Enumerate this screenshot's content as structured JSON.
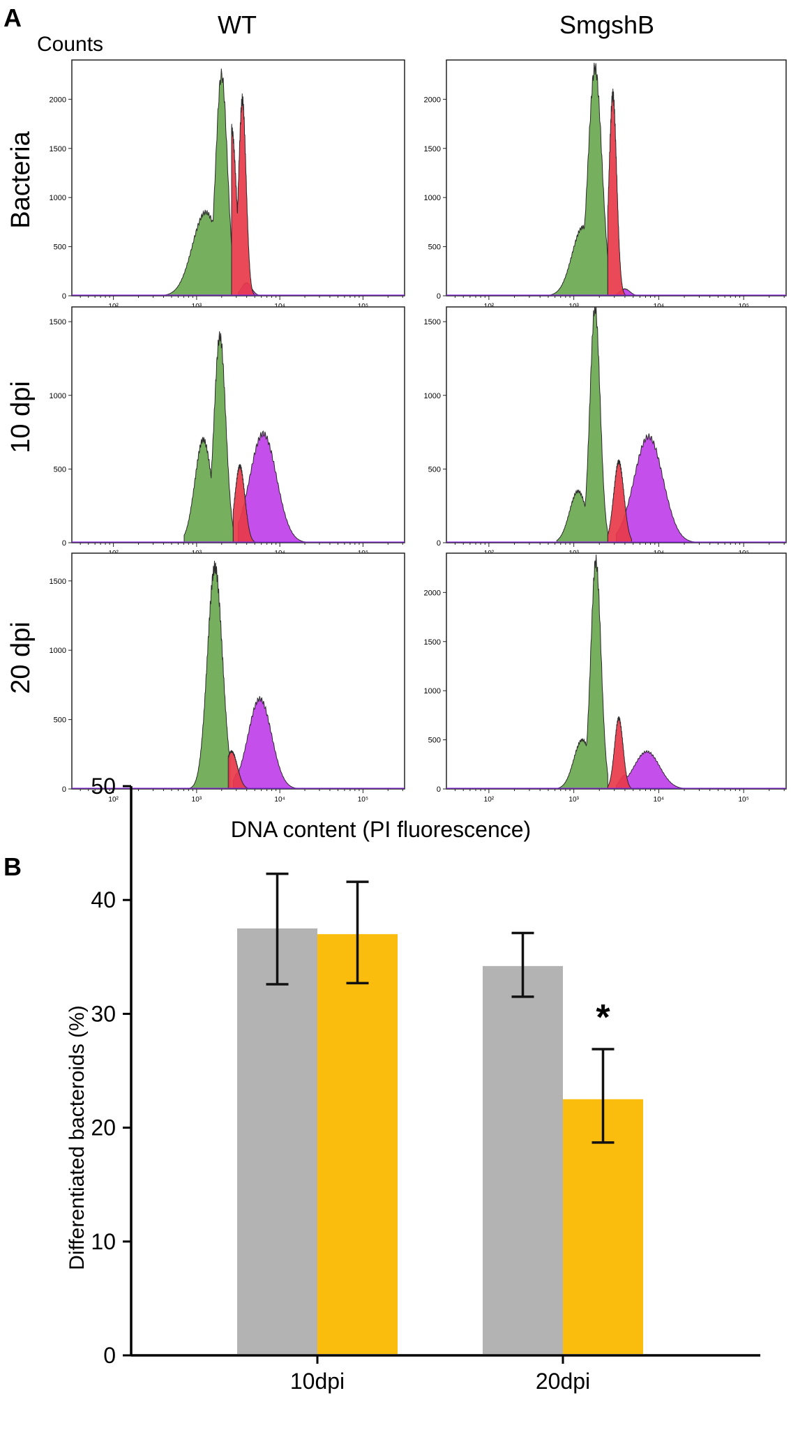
{
  "panel_a": {
    "label": "A",
    "y_axis_label": "Counts",
    "x_axis_label": "DNA content (PI fluorescence)",
    "column_labels": [
      "WT",
      "SmgshB"
    ],
    "row_labels": [
      "Bacteria",
      "10 dpi",
      "20 dpi"
    ],
    "x_ticks": [
      "10²",
      "10³",
      "10⁴",
      "10⁵"
    ],
    "colors": {
      "green": "#6aa84f",
      "red": "#e8394a",
      "magenta": "#c040e8",
      "outline": "#2a2a2a"
    }
  },
  "panel_b": {
    "label": "B"
  },
  "chart_data": [
    {
      "type": "area",
      "title": "Bacteria – WT",
      "xlabel": "DNA content (PI fluorescence)",
      "ylabel": "Counts",
      "x_scale": "log10",
      "xlim_log10": [
        1.5,
        5.5
      ],
      "ylim": [
        0,
        2400
      ],
      "yticks": [
        0,
        500,
        1000,
        1500,
        2000
      ],
      "series": [
        {
          "name": "green",
          "color": "#6aa84f",
          "peaks": [
            [
              3.11,
              850,
              0.16
            ],
            [
              3.3,
              2250,
              0.07
            ]
          ],
          "range": [
            2.6,
            3.42
          ]
        },
        {
          "name": "red",
          "color": "#e8394a",
          "peaks": [
            [
              3.42,
              1700,
              0.06
            ],
            [
              3.55,
              2000,
              0.045
            ]
          ],
          "range": [
            3.42,
            3.72
          ]
        },
        {
          "name": "magenta",
          "color": "#c040e8",
          "peaks": [
            [
              3.6,
              130,
              0.06
            ]
          ],
          "range": [
            3.5,
            4.0
          ]
        }
      ]
    },
    {
      "type": "area",
      "title": "Bacteria – SmgshB",
      "xlabel": "DNA content (PI fluorescence)",
      "ylabel": "Counts",
      "x_scale": "log10",
      "xlim_log10": [
        1.5,
        5.5
      ],
      "ylim": [
        0,
        2400
      ],
      "yticks": [
        0,
        500,
        1000,
        1500,
        2000
      ],
      "series": [
        {
          "name": "green",
          "color": "#6aa84f",
          "peaks": [
            [
              3.11,
              700,
              0.13
            ],
            [
              3.25,
              2320,
              0.08
            ]
          ],
          "range": [
            2.7,
            3.4
          ]
        },
        {
          "name": "red",
          "color": "#e8394a",
          "peaks": [
            [
              3.46,
              2050,
              0.045
            ]
          ],
          "range": [
            3.4,
            3.65
          ]
        },
        {
          "name": "magenta",
          "color": "#c040e8",
          "peaks": [
            [
              3.6,
              70,
              0.06
            ]
          ],
          "range": [
            3.5,
            3.9
          ]
        }
      ]
    },
    {
      "type": "area",
      "title": "10 dpi – WT",
      "xlabel": "DNA content (PI fluorescence)",
      "ylabel": "Counts",
      "x_scale": "log10",
      "xlim_log10": [
        1.5,
        5.5
      ],
      "ylim": [
        0,
        1600
      ],
      "yticks": [
        0,
        500,
        1000,
        1500
      ],
      "series": [
        {
          "name": "green",
          "color": "#6aa84f",
          "peaks": [
            [
              3.08,
              700,
              0.1
            ],
            [
              3.28,
              1400,
              0.07
            ]
          ],
          "range": [
            2.85,
            3.44
          ]
        },
        {
          "name": "red",
          "color": "#e8394a",
          "peaks": [
            [
              3.52,
              520,
              0.06
            ]
          ],
          "range": [
            3.44,
            3.7
          ]
        },
        {
          "name": "magenta",
          "color": "#c040e8",
          "peaks": [
            [
              3.58,
              200,
              0.06
            ],
            [
              3.8,
              740,
              0.16
            ]
          ],
          "range": [
            3.5,
            4.5
          ]
        }
      ]
    },
    {
      "type": "area",
      "title": "10 dpi – SmgshB",
      "xlabel": "DNA content (PI fluorescence)",
      "ylabel": "Counts",
      "x_scale": "log10",
      "xlim_log10": [
        1.5,
        5.5
      ],
      "ylim": [
        0,
        1600
      ],
      "yticks": [
        0,
        500,
        1000,
        1500
      ],
      "series": [
        {
          "name": "green",
          "color": "#6aa84f",
          "peaks": [
            [
              3.05,
              350,
              0.1
            ],
            [
              3.25,
              1600,
              0.06
            ]
          ],
          "range": [
            2.8,
            3.4
          ]
        },
        {
          "name": "red",
          "color": "#e8394a",
          "peaks": [
            [
              3.53,
              550,
              0.06
            ]
          ],
          "range": [
            3.4,
            3.68
          ]
        },
        {
          "name": "magenta",
          "color": "#c040e8",
          "peaks": [
            [
              3.6,
              140,
              0.06
            ],
            [
              3.88,
              720,
              0.17
            ]
          ],
          "range": [
            3.5,
            4.6
          ]
        }
      ]
    },
    {
      "type": "area",
      "title": "20 dpi – WT",
      "xlabel": "DNA content (PI fluorescence)",
      "ylabel": "Counts",
      "x_scale": "log10",
      "xlim_log10": [
        1.5,
        5.5
      ],
      "ylim": [
        0,
        1700
      ],
      "yticks": [
        0,
        500,
        1000,
        1500
      ],
      "series": [
        {
          "name": "green",
          "color": "#6aa84f",
          "peaks": [
            [
              3.22,
              1600,
              0.09
            ]
          ],
          "range": [
            2.92,
            3.4
          ]
        },
        {
          "name": "red",
          "color": "#e8394a",
          "peaks": [
            [
              3.42,
              270,
              0.07
            ]
          ],
          "range": [
            3.38,
            3.66
          ]
        },
        {
          "name": "magenta",
          "color": "#c040e8",
          "peaks": [
            [
              3.5,
              120,
              0.05
            ],
            [
              3.76,
              650,
              0.14
            ]
          ],
          "range": [
            3.44,
            4.35
          ]
        }
      ]
    },
    {
      "type": "area",
      "title": "20 dpi – SmgshB",
      "xlabel": "DNA content (PI fluorescence)",
      "ylabel": "Counts",
      "x_scale": "log10",
      "xlim_log10": [
        1.5,
        5.5
      ],
      "ylim": [
        0,
        2400
      ],
      "yticks": [
        0,
        500,
        1000,
        1500,
        2000
      ],
      "series": [
        {
          "name": "green",
          "color": "#6aa84f",
          "peaks": [
            [
              3.1,
              500,
              0.1
            ],
            [
              3.26,
              2320,
              0.06
            ]
          ],
          "range": [
            2.8,
            3.4
          ]
        },
        {
          "name": "red",
          "color": "#e8394a",
          "peaks": [
            [
              3.53,
              720,
              0.05
            ]
          ],
          "range": [
            3.4,
            3.68
          ]
        },
        {
          "name": "magenta",
          "color": "#c040e8",
          "peaks": [
            [
              3.6,
              140,
              0.06
            ],
            [
              3.86,
              380,
              0.15
            ]
          ],
          "range": [
            3.5,
            4.45
          ]
        }
      ]
    },
    {
      "type": "bar",
      "title": "",
      "xlabel": "",
      "ylabel": "Differentiated bacteroids (%)",
      "categories": [
        "10dpi",
        "20dpi"
      ],
      "ylim": [
        0,
        50
      ],
      "yticks": [
        0,
        10,
        20,
        30,
        40,
        50
      ],
      "series": [
        {
          "name": "WT",
          "color": "#b3b3b3",
          "values": [
            37.5,
            34.2
          ],
          "errors": [
            [
              32.6,
              42.3
            ],
            [
              31.5,
              37.1
            ]
          ]
        },
        {
          "name": "SmgshB",
          "color": "#fbbd0d",
          "values": [
            37.0,
            22.5
          ],
          "errors": [
            [
              32.7,
              41.6
            ],
            [
              18.7,
              26.9
            ]
          ]
        }
      ],
      "significance": [
        {
          "category": "20dpi",
          "series": "SmgshB",
          "label": "*"
        }
      ]
    }
  ]
}
